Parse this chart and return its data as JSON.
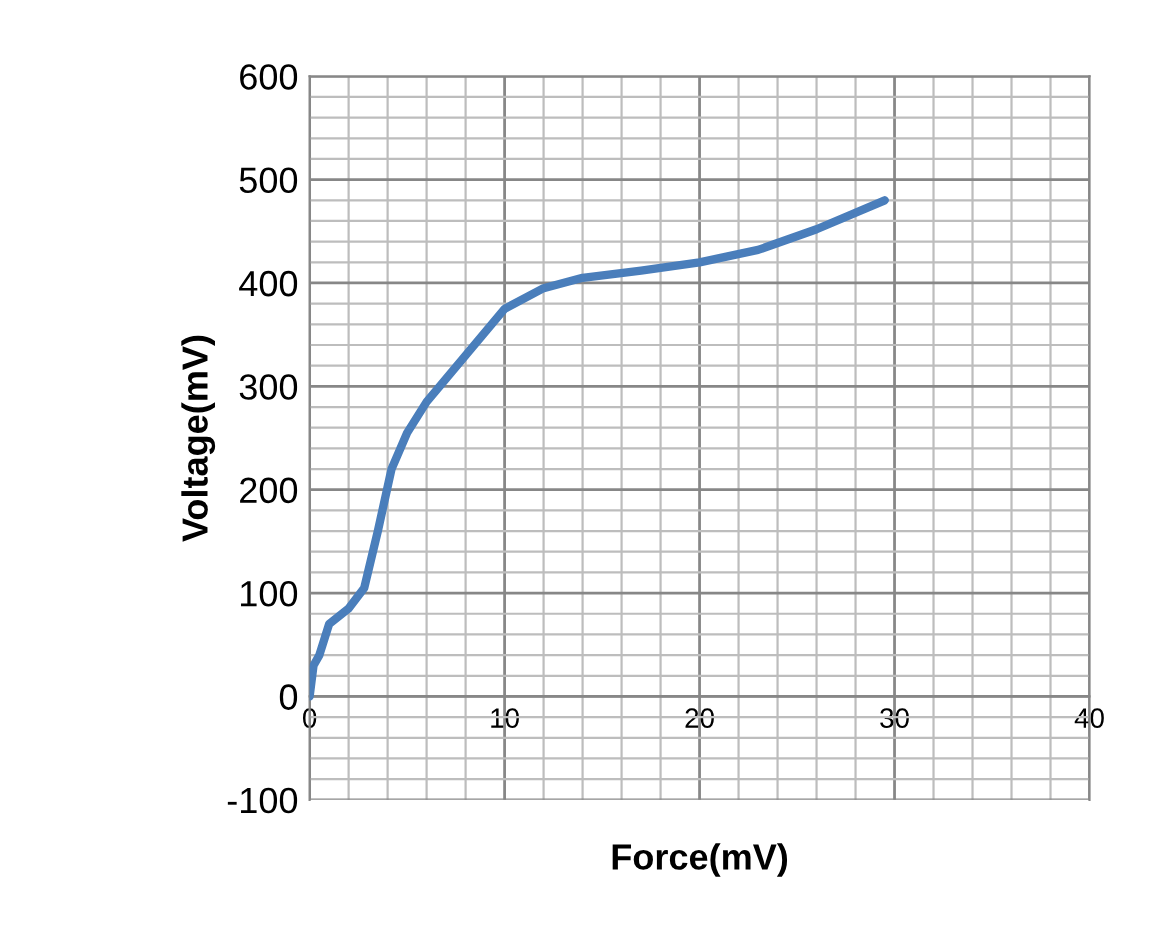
{
  "chart_data": {
    "type": "line",
    "xlabel": "Force(mV)",
    "ylabel": "Voltage(mV)",
    "x": [
      0,
      0.2,
      0.5,
      1,
      2,
      2.8,
      3.5,
      4.2,
      5,
      6,
      8,
      10,
      12,
      14,
      17,
      20,
      23,
      26,
      29.5
    ],
    "series": [
      {
        "color": "#4a7ebb",
        "values": [
          0,
          30,
          40,
          70,
          85,
          105,
          160,
          220,
          255,
          285,
          330,
          375,
          395,
          405,
          412,
          420,
          432,
          452,
          480
        ]
      }
    ],
    "xlim": [
      0,
      40
    ],
    "xticks": [
      0,
      10,
      20,
      30,
      40
    ],
    "ylim": [
      -100,
      600
    ],
    "yticks": [
      -100,
      0,
      100,
      200,
      300,
      400,
      500,
      600
    ],
    "grid": true,
    "legend": false,
    "marker": "none",
    "line_style": "solid"
  }
}
